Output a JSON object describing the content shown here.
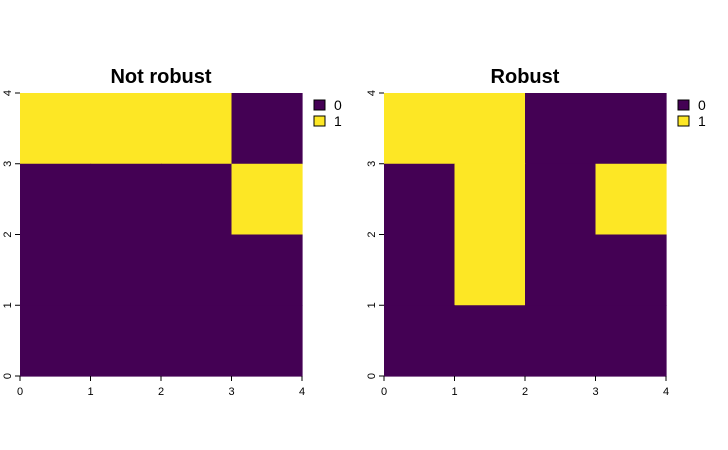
{
  "colors": {
    "0": "#440154",
    "1": "#FDE725"
  },
  "chart_data": [
    {
      "type": "heatmap",
      "title": "Not robust",
      "xlabel": "",
      "ylabel": "",
      "xlim": [
        0,
        4
      ],
      "ylim": [
        0,
        4
      ],
      "x_ticks": [
        "0",
        "1",
        "2",
        "3",
        "4"
      ],
      "y_ticks": [
        "0",
        "1",
        "2",
        "3",
        "4"
      ],
      "legend": {
        "position": "right",
        "entries": [
          "0",
          "1"
        ]
      },
      "rows_top_to_bottom": [
        [
          1,
          1,
          1,
          0
        ],
        [
          0,
          0,
          0,
          1
        ],
        [
          0,
          0,
          0,
          0
        ],
        [
          0,
          0,
          0,
          0
        ]
      ]
    },
    {
      "type": "heatmap",
      "title": "Robust",
      "xlabel": "",
      "ylabel": "",
      "xlim": [
        0,
        4
      ],
      "ylim": [
        0,
        4
      ],
      "x_ticks": [
        "0",
        "1",
        "2",
        "3",
        "4"
      ],
      "y_ticks": [
        "0",
        "1",
        "2",
        "3",
        "4"
      ],
      "legend": {
        "position": "right",
        "entries": [
          "0",
          "1"
        ]
      },
      "rows_top_to_bottom": [
        [
          1,
          1,
          0,
          0
        ],
        [
          0,
          1,
          0,
          1
        ],
        [
          0,
          1,
          0,
          0
        ],
        [
          0,
          0,
          0,
          0
        ]
      ]
    }
  ]
}
